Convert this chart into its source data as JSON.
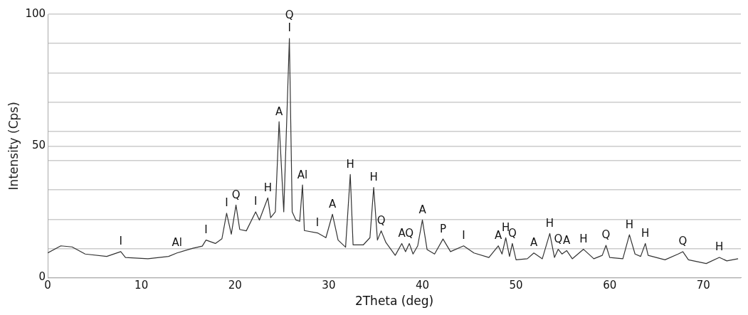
{
  "chart_data": {
    "type": "line",
    "xlabel": "2Theta (deg)",
    "ylabel": "Intensity (Cps)",
    "xlim": [
      0,
      74
    ],
    "xticks": [
      0,
      10,
      20,
      30,
      40,
      50,
      60,
      70
    ],
    "ylim": [
      0,
      100
    ],
    "yticks": [
      0,
      {
        "value": 11.1,
        "label": null
      },
      {
        "value": 22.2,
        "label": null
      },
      {
        "value": 33.3,
        "label": null
      },
      {
        "value": 44.4,
        "label": null
      },
      50,
      {
        "value": 55.6,
        "label": null
      },
      {
        "value": 66.7,
        "label": null
      },
      {
        "value": 77.8,
        "label": null
      },
      {
        "value": 88.9,
        "label": null
      },
      100
    ],
    "grid": "y",
    "legend": false,
    "marker": "none",
    "line_style": "solid",
    "series": [
      {
        "color": "#333333",
        "x": [
          0,
          1.4,
          2.6,
          4.0,
          6.3,
          7.8,
          8.3,
          10.7,
          12.9,
          13.8,
          15.5,
          16.5,
          16.9,
          17.9,
          18.6,
          19.1,
          19.6,
          20.1,
          20.5,
          21.2,
          22.2,
          22.6,
          23.5,
          23.8,
          24.3,
          24.7,
          25.2,
          25.8,
          26.1,
          26.5,
          26.9,
          27.2,
          27.4,
          28.8,
          29.7,
          30.4,
          31.0,
          31.8,
          32.3,
          32.6,
          33.7,
          34.4,
          34.8,
          35.2,
          35.6,
          36.1,
          37.1,
          37.8,
          38.2,
          38.6,
          39.0,
          39.5,
          40.0,
          40.5,
          41.3,
          42.2,
          43.0,
          44.4,
          45.5,
          47.1,
          48.1,
          48.5,
          48.9,
          49.3,
          49.6,
          50.0,
          51.2,
          51.9,
          52.8,
          53.6,
          54.1,
          54.5,
          54.9,
          55.4,
          56.0,
          57.2,
          58.3,
          59.2,
          59.6,
          60.0,
          61.4,
          62.1,
          62.7,
          63.3,
          63.8,
          64.1,
          65.9,
          67.3,
          67.8,
          68.4,
          70.3,
          71.7,
          72.5,
          73.7
        ],
        "values": [
          9.4,
          12.1,
          11.7,
          9.0,
          8.1,
          9.9,
          7.7,
          7.2,
          8.1,
          9.4,
          11.2,
          12.0,
          14.3,
          13.0,
          14.8,
          24.5,
          16.5,
          27.6,
          18.3,
          17.8,
          25.0,
          21.9,
          30.3,
          22.8,
          25.0,
          59.2,
          25.0,
          90.8,
          25.0,
          21.9,
          21.4,
          35.2,
          17.9,
          17.0,
          15.2,
          24.1,
          14.3,
          11.6,
          39.2,
          12.5,
          12.5,
          15.2,
          34.3,
          14.3,
          17.8,
          13.4,
          8.5,
          13.0,
          9.9,
          13.0,
          9.0,
          12.1,
          21.9,
          10.7,
          9.0,
          14.7,
          9.9,
          12.1,
          9.4,
          7.7,
          12.1,
          9.0,
          15.2,
          8.1,
          13.0,
          6.8,
          7.2,
          9.4,
          7.2,
          16.8,
          7.7,
          10.8,
          9.0,
          10.3,
          7.2,
          10.8,
          7.2,
          8.5,
          12.3,
          7.7,
          7.2,
          16.3,
          9.0,
          8.1,
          13.0,
          8.5,
          6.8,
          9.0,
          9.9,
          6.8,
          5.4,
          7.7,
          6.4,
          7.2
        ]
      }
    ],
    "annotations": [
      {
        "text": "I",
        "x": 7.8,
        "y": 9.9
      },
      {
        "text": "Al",
        "x": 13.8,
        "y": 9.4
      },
      {
        "text": "I",
        "x": 16.9,
        "y": 14.3
      },
      {
        "text": "I",
        "x": 19.1,
        "y": 24.5
      },
      {
        "text": "Q",
        "x": 20.1,
        "y": 27.6
      },
      {
        "text": "I",
        "x": 22.2,
        "y": 25.0
      },
      {
        "text": "H",
        "x": 23.5,
        "y": 30.3
      },
      {
        "text": "A",
        "x": 24.7,
        "y": 59.2
      },
      {
        "text": "I",
        "x": 25.8,
        "y": 90.8
      },
      {
        "text": "Q",
        "x": 25.8,
        "y": 90.8
      },
      {
        "text": "Al",
        "x": 27.2,
        "y": 35.2
      },
      {
        "text": "I",
        "x": 28.8,
        "y": 17.0
      },
      {
        "text": "A",
        "x": 30.4,
        "y": 24.1
      },
      {
        "text": "H",
        "x": 32.3,
        "y": 39.2
      },
      {
        "text": "H",
        "x": 34.8,
        "y": 34.3
      },
      {
        "text": "Q",
        "x": 35.6,
        "y": 17.8
      },
      {
        "text": "A",
        "x": 37.8,
        "y": 13.0
      },
      {
        "text": "Q",
        "x": 38.6,
        "y": 13.0
      },
      {
        "text": "A",
        "x": 40.0,
        "y": 21.9
      },
      {
        "text": "P",
        "x": 42.2,
        "y": 14.7
      },
      {
        "text": "I",
        "x": 44.4,
        "y": 12.1
      },
      {
        "text": "A",
        "x": 48.1,
        "y": 12.1
      },
      {
        "text": "H",
        "x": 48.9,
        "y": 15.2
      },
      {
        "text": "Q",
        "x": 49.6,
        "y": 13.0
      },
      {
        "text": "A",
        "x": 51.9,
        "y": 9.4
      },
      {
        "text": "H",
        "x": 53.6,
        "y": 16.8
      },
      {
        "text": "Q",
        "x": 54.5,
        "y": 10.8
      },
      {
        "text": "A",
        "x": 55.4,
        "y": 10.3
      },
      {
        "text": "H",
        "x": 57.2,
        "y": 10.8
      },
      {
        "text": "Q",
        "x": 59.6,
        "y": 12.3
      },
      {
        "text": "H",
        "x": 62.1,
        "y": 16.3
      },
      {
        "text": "H",
        "x": 63.8,
        "y": 13.0
      },
      {
        "text": "Q",
        "x": 67.8,
        "y": 9.9
      },
      {
        "text": "H",
        "x": 71.7,
        "y": 7.7
      }
    ]
  }
}
